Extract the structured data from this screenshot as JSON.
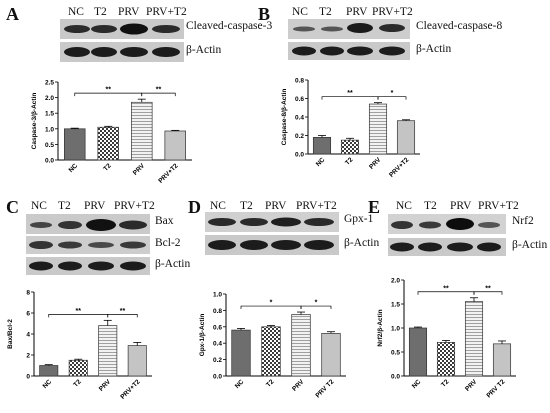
{
  "panels": [
    {
      "letter": "A",
      "lanes": [
        "NC",
        "T2",
        "PRV",
        "PRV+T2"
      ],
      "proteins": [
        "Cleaved-caspase-3",
        "β-Actin"
      ],
      "chart_data": {
        "type": "bar",
        "categories": [
          "NC",
          "T2",
          "PRV",
          "PRV+T2"
        ],
        "values": [
          1.0,
          1.05,
          1.85,
          0.93
        ],
        "errors": [
          0.02,
          0.03,
          0.1,
          0.02
        ],
        "ylabel": "Caspase-3/β-Actin",
        "ylim": [
          0,
          2.5
        ],
        "yticks": [
          "0.0",
          "0.5",
          "1.0",
          "1.5",
          "2.0",
          "2.5"
        ],
        "significance": [
          {
            "from": 0,
            "to": 2,
            "label": "**"
          },
          {
            "from": 2,
            "to": 3,
            "label": "**"
          }
        ]
      }
    },
    {
      "letter": "B",
      "lanes": [
        "NC",
        "T2",
        "PRV",
        "PRV+T2"
      ],
      "proteins": [
        "Cleaved-caspase-8",
        "β-Actin"
      ],
      "chart_data": {
        "type": "bar",
        "categories": [
          "NC",
          "T2",
          "PRV",
          "PRV+T2"
        ],
        "values": [
          0.18,
          0.15,
          0.54,
          0.36
        ],
        "errors": [
          0.02,
          0.02,
          0.015,
          0.01
        ],
        "ylabel": "Caspase-8/β-Actin",
        "ylim": [
          0,
          0.8
        ],
        "yticks": [
          "0.0",
          "0.2",
          "0.4",
          "0.6",
          "0.8"
        ],
        "significance": [
          {
            "from": 0,
            "to": 2,
            "label": "**"
          },
          {
            "from": 2,
            "to": 3,
            "label": "*"
          }
        ]
      }
    },
    {
      "letter": "C",
      "lanes": [
        "NC",
        "T2",
        "PRV",
        "PRV+T2"
      ],
      "proteins": [
        "Bax",
        "Bcl-2",
        "β-Actin"
      ],
      "chart_data": {
        "type": "bar",
        "categories": [
          "NC",
          "T2",
          "PRV",
          "PRV+T2"
        ],
        "values": [
          1.0,
          1.5,
          4.8,
          2.9
        ],
        "errors": [
          0.08,
          0.1,
          0.5,
          0.3
        ],
        "ylabel": "Bax/Bcl-2",
        "ylim": [
          0,
          8
        ],
        "yticks": [
          "0",
          "2",
          "4",
          "6",
          "8"
        ],
        "significance": [
          {
            "from": 0,
            "to": 2,
            "label": "**"
          },
          {
            "from": 2,
            "to": 3,
            "label": "**"
          }
        ]
      }
    },
    {
      "letter": "D",
      "lanes": [
        "NC",
        "T2",
        "PRV",
        "PRV+T2"
      ],
      "proteins": [
        "Gpx-1",
        "β-Actin"
      ],
      "chart_data": {
        "type": "bar",
        "categories": [
          "NC",
          "T2",
          "PRV",
          "PRV T2"
        ],
        "values": [
          0.56,
          0.6,
          0.75,
          0.52
        ],
        "errors": [
          0.02,
          0.015,
          0.03,
          0.02
        ],
        "ylabel": "Gpx-1/β-Actin",
        "ylim": [
          0,
          1.0
        ],
        "yticks": [
          "0.0",
          "0.2",
          "0.4",
          "0.6",
          "0.8",
          "1.0"
        ],
        "significance": [
          {
            "from": 0,
            "to": 2,
            "label": "*"
          },
          {
            "from": 2,
            "to": 3,
            "label": "*"
          }
        ]
      }
    },
    {
      "letter": "E",
      "lanes": [
        "NC",
        "T2",
        "PRV",
        "PRV+T2"
      ],
      "proteins": [
        "Nrf2",
        "β-Actin"
      ],
      "chart_data": {
        "type": "bar",
        "categories": [
          "NC",
          "T2",
          "PRV",
          "PRV T2"
        ],
        "values": [
          1.0,
          0.7,
          1.55,
          0.67
        ],
        "errors": [
          0.02,
          0.04,
          0.08,
          0.06
        ],
        "ylabel": "Nrf2/β-Actin",
        "ylim": [
          0,
          2.0
        ],
        "yticks": [
          "0.0",
          "0.5",
          "1.0",
          "1.5",
          "2.0"
        ],
        "significance": [
          {
            "from": 0,
            "to": 2,
            "label": "**"
          },
          {
            "from": 2,
            "to": 3,
            "label": "**"
          }
        ]
      }
    }
  ]
}
